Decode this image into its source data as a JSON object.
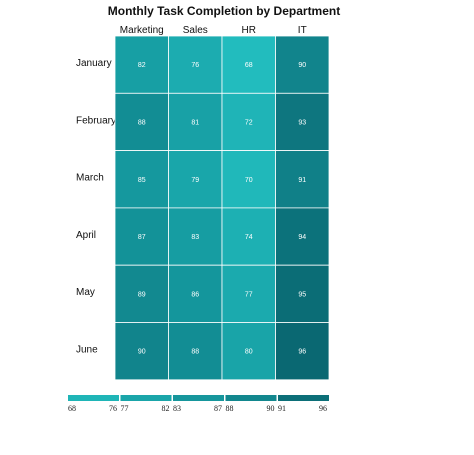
{
  "chart_data": {
    "type": "heatmap",
    "title": "Monthly Task Completion by Department",
    "columns": [
      "Marketing",
      "Sales",
      "HR",
      "IT"
    ],
    "rows": [
      "January",
      "February",
      "March",
      "April",
      "May",
      "June"
    ],
    "values": [
      [
        82,
        76,
        68,
        90
      ],
      [
        88,
        81,
        72,
        93
      ],
      [
        85,
        79,
        70,
        91
      ],
      [
        87,
        83,
        74,
        94
      ],
      [
        89,
        86,
        77,
        95
      ],
      [
        90,
        88,
        80,
        96
      ]
    ],
    "legend": {
      "placement": "bottom",
      "bins": [
        {
          "min": "68",
          "max": "76",
          "color": "#1fb5b7"
        },
        {
          "min": "77",
          "max": "82",
          "color": "#1aa5a9"
        },
        {
          "min": "83",
          "max": "87",
          "color": "#16969c"
        },
        {
          "min": "88",
          "max": "90",
          "color": "#12878e"
        },
        {
          "min": "91",
          "max": "96",
          "color": "#0c6f78"
        }
      ]
    }
  }
}
